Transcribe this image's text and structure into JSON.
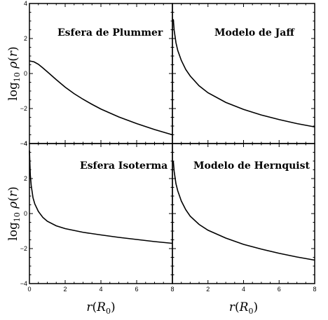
{
  "chart_data": {
    "type": "line",
    "layout": "2x2 grid, shared axes",
    "xlabel": "r(R_0)",
    "ylabel": "log_10 ρ(r)",
    "xlim": [
      0,
      8
    ],
    "ylim": [
      -4,
      4
    ],
    "x_ticks": [
      0,
      2,
      4,
      6,
      8
    ],
    "y_ticks": [
      -4,
      -2,
      0,
      2,
      4
    ],
    "grid": false,
    "panels": [
      {
        "title": "Esfera de Plummer",
        "position": "top-left",
        "series": [
          {
            "x": [
              0,
              0.25,
              0.5,
              0.75,
              1,
              1.5,
              2,
              2.5,
              3,
              3.5,
              4,
              5,
              6,
              7,
              8
            ],
            "y": [
              0.72,
              0.67,
              0.53,
              0.32,
              0.1,
              -0.35,
              -0.78,
              -1.15,
              -1.47,
              -1.76,
              -2.03,
              -2.48,
              -2.86,
              -3.2,
              -3.5
            ]
          }
        ]
      },
      {
        "title": "Modelo de Jaff",
        "position": "top-right",
        "series": [
          {
            "x": [
              0.05,
              0.1,
              0.2,
              0.3,
              0.5,
              0.75,
              1,
              1.5,
              2,
              3,
              4,
              5,
              6,
              7,
              8
            ],
            "y": [
              3.1,
              2.46,
              1.76,
              1.32,
              0.75,
              0.23,
              -0.14,
              -0.7,
              -1.1,
              -1.65,
              -2.05,
              -2.37,
              -2.63,
              -2.86,
              -3.05
            ]
          }
        ]
      },
      {
        "title": "Esfera Isoterma",
        "position": "bottom-left",
        "series": [
          {
            "x": [
              0,
              0.05,
              0.1,
              0.2,
              0.3,
              0.5,
              0.75,
              1,
              1.5,
              2,
              3,
              4,
              5,
              6,
              7,
              8
            ],
            "y": [
              3.6,
              2.2,
              1.6,
              0.9,
              0.55,
              0.12,
              -0.22,
              -0.44,
              -0.7,
              -0.86,
              -1.07,
              -1.22,
              -1.36,
              -1.48,
              -1.6,
              -1.7
            ]
          }
        ]
      },
      {
        "title": "Modelo de Hernquist",
        "position": "bottom-right",
        "series": [
          {
            "x": [
              0.05,
              0.1,
              0.2,
              0.3,
              0.5,
              0.75,
              1,
              1.5,
              2,
              3,
              4,
              5,
              6,
              7,
              8
            ],
            "y": [
              3.0,
              2.4,
              1.7,
              1.3,
              0.72,
              0.22,
              -0.15,
              -0.62,
              -0.95,
              -1.4,
              -1.76,
              -2.03,
              -2.27,
              -2.48,
              -2.66
            ]
          }
        ]
      }
    ]
  }
}
